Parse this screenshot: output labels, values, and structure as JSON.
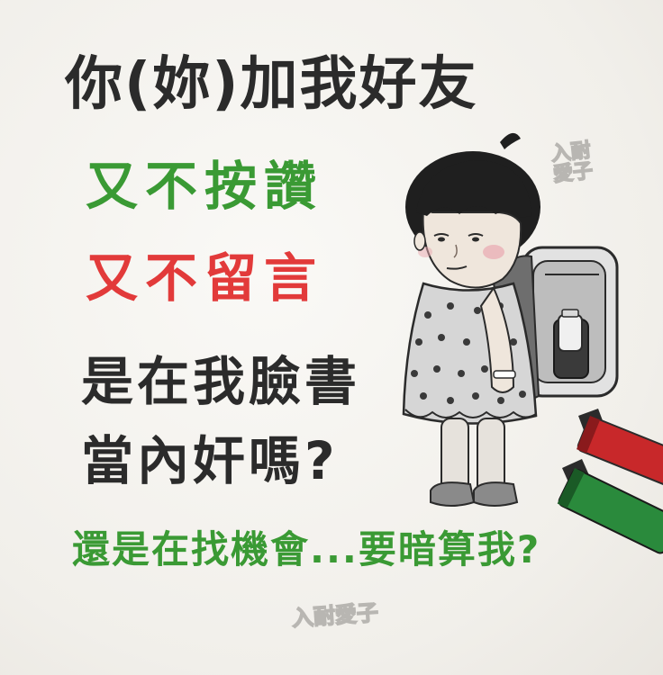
{
  "lines": {
    "title": "你(妳)加我好友",
    "line_green": "又不按讚",
    "line_red": "又不留言",
    "line_dark_1": "是在我臉書",
    "line_dark_2": "當內奸嗎?",
    "line_green_bottom": "還是在找機會...要暗算我?"
  },
  "watermark": {
    "text_top": "入耐\n愛子",
    "text_bottom": "入耐愛子"
  },
  "colors": {
    "text_dark": "#2b2b2b",
    "text_green": "#3a9a34",
    "text_red": "#e23a3a",
    "marker_red": "#c8282a",
    "marker_green": "#2a8a3c"
  }
}
